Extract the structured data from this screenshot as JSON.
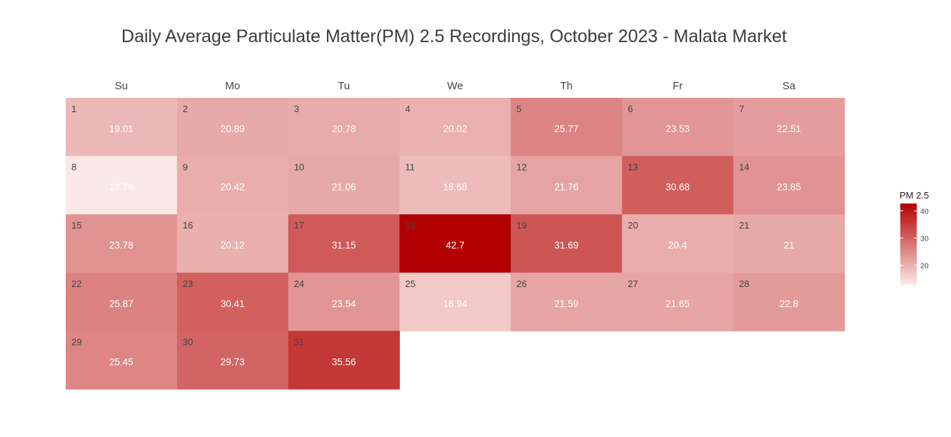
{
  "chart_data": {
    "type": "heatmap",
    "title": "Daily Average Particulate Matter(PM) 2.5 Recordings, October 2023 - Malata Market",
    "weekdays": [
      "Su",
      "Mo",
      "Tu",
      "We",
      "Th",
      "Fr",
      "Sa"
    ],
    "first_weekday_index": 0,
    "days": [
      {
        "day": 1,
        "value": 19.01
      },
      {
        "day": 2,
        "value": 20.89
      },
      {
        "day": 3,
        "value": 20.78
      },
      {
        "day": 4,
        "value": 20.02
      },
      {
        "day": 5,
        "value": 25.77
      },
      {
        "day": 6,
        "value": 23.53
      },
      {
        "day": 7,
        "value": 22.51
      },
      {
        "day": 8,
        "value": 12.78
      },
      {
        "day": 9,
        "value": 20.42
      },
      {
        "day": 10,
        "value": 21.06
      },
      {
        "day": 11,
        "value": 18.68
      },
      {
        "day": 12,
        "value": 21.76
      },
      {
        "day": 13,
        "value": 30.68
      },
      {
        "day": 14,
        "value": 23.85
      },
      {
        "day": 15,
        "value": 23.78
      },
      {
        "day": 16,
        "value": 20.12
      },
      {
        "day": 17,
        "value": 31.15
      },
      {
        "day": 18,
        "value": 42.7
      },
      {
        "day": 19,
        "value": 31.69
      },
      {
        "day": 20,
        "value": 20.4
      },
      {
        "day": 21,
        "value": 21
      },
      {
        "day": 22,
        "value": 25.87
      },
      {
        "day": 23,
        "value": 30.41
      },
      {
        "day": 24,
        "value": 23.54
      },
      {
        "day": 25,
        "value": 16.94
      },
      {
        "day": 26,
        "value": 21.59
      },
      {
        "day": 27,
        "value": 21.65
      },
      {
        "day": 28,
        "value": 22.8
      },
      {
        "day": 29,
        "value": 25.45
      },
      {
        "day": 30,
        "value": 29.73
      },
      {
        "day": 31,
        "value": 35.56
      }
    ],
    "legend": {
      "title": "PM 2.5",
      "ticks": [
        20,
        30,
        40
      ],
      "range": [
        12.78,
        42.7
      ],
      "color_low": "#fbe9e7",
      "color_high": "#b30000"
    }
  }
}
